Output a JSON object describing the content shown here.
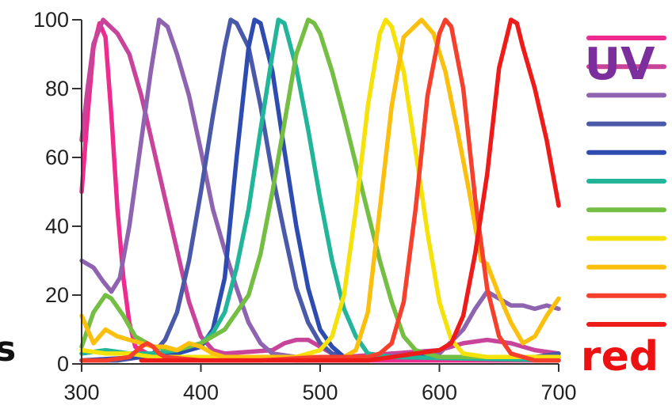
{
  "chart_data": {
    "type": "line",
    "title": "",
    "xlabel": "",
    "ylabel": "",
    "xlim": [
      300,
      700
    ],
    "ylim": [
      0,
      100
    ],
    "x_ticks": [
      "300",
      "400",
      "500",
      "600",
      "700"
    ],
    "y_ticks": [
      "0",
      "20",
      "40",
      "60",
      "80",
      "100"
    ],
    "grid": false,
    "legend_position": "right",
    "legend_labels": [
      {
        "text": "UV",
        "color": "#7b2f9c"
      },
      {
        "text": "red",
        "color": "#ee1111"
      }
    ],
    "cut_off_label": "s",
    "series": [
      {
        "color": "#ee2b8e",
        "points": [
          [
            300,
            50
          ],
          [
            305,
            72
          ],
          [
            310,
            92
          ],
          [
            315,
            99
          ],
          [
            320,
            95
          ],
          [
            325,
            72
          ],
          [
            330,
            45
          ],
          [
            335,
            25
          ],
          [
            340,
            12
          ],
          [
            345,
            5
          ],
          [
            355,
            3
          ],
          [
            380,
            2
          ],
          [
            420,
            2
          ],
          [
            480,
            1
          ],
          [
            550,
            1
          ],
          [
            650,
            1
          ],
          [
            700,
            1
          ]
        ]
      },
      {
        "color": "#c8439a",
        "points": [
          [
            300,
            65
          ],
          [
            305,
            80
          ],
          [
            310,
            93
          ],
          [
            318,
            100
          ],
          [
            330,
            96
          ],
          [
            340,
            90
          ],
          [
            350,
            78
          ],
          [
            360,
            63
          ],
          [
            370,
            48
          ],
          [
            380,
            33
          ],
          [
            390,
            18
          ],
          [
            400,
            8
          ],
          [
            410,
            4
          ],
          [
            420,
            3
          ],
          [
            460,
            4
          ],
          [
            470,
            6
          ],
          [
            480,
            7
          ],
          [
            490,
            7
          ],
          [
            500,
            5
          ],
          [
            510,
            3
          ],
          [
            520,
            2
          ],
          [
            560,
            3
          ],
          [
            600,
            4
          ],
          [
            620,
            6
          ],
          [
            640,
            7
          ],
          [
            660,
            6
          ],
          [
            680,
            4
          ],
          [
            700,
            3
          ]
        ]
      },
      {
        "color": "#8e63b0",
        "points": [
          [
            300,
            30
          ],
          [
            310,
            28
          ],
          [
            318,
            24
          ],
          [
            325,
            21
          ],
          [
            332,
            25
          ],
          [
            340,
            40
          ],
          [
            350,
            65
          ],
          [
            358,
            85
          ],
          [
            365,
            100
          ],
          [
            372,
            98
          ],
          [
            380,
            90
          ],
          [
            390,
            78
          ],
          [
            400,
            62
          ],
          [
            410,
            45
          ],
          [
            420,
            33
          ],
          [
            430,
            22
          ],
          [
            440,
            12
          ],
          [
            450,
            6
          ],
          [
            460,
            3
          ],
          [
            480,
            2
          ],
          [
            540,
            2
          ],
          [
            600,
            3
          ],
          [
            620,
            10
          ],
          [
            630,
            16
          ],
          [
            640,
            21
          ],
          [
            650,
            19
          ],
          [
            660,
            17
          ],
          [
            670,
            17
          ],
          [
            680,
            16
          ],
          [
            690,
            17
          ],
          [
            700,
            16
          ]
        ]
      },
      {
        "color": "#4b5aa8",
        "points": [
          [
            300,
            1
          ],
          [
            330,
            1
          ],
          [
            350,
            2
          ],
          [
            360,
            3
          ],
          [
            370,
            7
          ],
          [
            380,
            15
          ],
          [
            390,
            30
          ],
          [
            400,
            50
          ],
          [
            410,
            72
          ],
          [
            420,
            92
          ],
          [
            425,
            100
          ],
          [
            430,
            99
          ],
          [
            440,
            92
          ],
          [
            450,
            75
          ],
          [
            460,
            55
          ],
          [
            470,
            38
          ],
          [
            480,
            22
          ],
          [
            490,
            12
          ],
          [
            500,
            6
          ],
          [
            510,
            3
          ],
          [
            520,
            2
          ],
          [
            600,
            2
          ],
          [
            680,
            2
          ],
          [
            700,
            3
          ]
        ]
      },
      {
        "color": "#2e4bb0",
        "points": [
          [
            300,
            1
          ],
          [
            350,
            2
          ],
          [
            380,
            3
          ],
          [
            400,
            5
          ],
          [
            410,
            10
          ],
          [
            420,
            25
          ],
          [
            430,
            60
          ],
          [
            440,
            92
          ],
          [
            445,
            100
          ],
          [
            450,
            99
          ],
          [
            460,
            85
          ],
          [
            470,
            62
          ],
          [
            480,
            40
          ],
          [
            490,
            22
          ],
          [
            500,
            10
          ],
          [
            510,
            5
          ],
          [
            520,
            2
          ],
          [
            600,
            2
          ],
          [
            700,
            2
          ]
        ]
      },
      {
        "color": "#22b59a",
        "points": [
          [
            300,
            3
          ],
          [
            320,
            4
          ],
          [
            340,
            3
          ],
          [
            360,
            3
          ],
          [
            380,
            4
          ],
          [
            400,
            6
          ],
          [
            410,
            9
          ],
          [
            420,
            15
          ],
          [
            430,
            28
          ],
          [
            440,
            45
          ],
          [
            450,
            68
          ],
          [
            460,
            90
          ],
          [
            465,
            100
          ],
          [
            470,
            99
          ],
          [
            480,
            86
          ],
          [
            490,
            68
          ],
          [
            500,
            48
          ],
          [
            510,
            30
          ],
          [
            520,
            16
          ],
          [
            530,
            8
          ],
          [
            540,
            3
          ],
          [
            560,
            2
          ],
          [
            700,
            1
          ]
        ]
      },
      {
        "color": "#74be43",
        "points": [
          [
            300,
            5
          ],
          [
            310,
            15
          ],
          [
            320,
            20
          ],
          [
            325,
            19
          ],
          [
            335,
            14
          ],
          [
            345,
            8
          ],
          [
            360,
            5
          ],
          [
            380,
            4
          ],
          [
            400,
            6
          ],
          [
            420,
            10
          ],
          [
            440,
            20
          ],
          [
            450,
            32
          ],
          [
            460,
            50
          ],
          [
            470,
            70
          ],
          [
            480,
            90
          ],
          [
            490,
            100
          ],
          [
            495,
            99
          ],
          [
            500,
            96
          ],
          [
            510,
            85
          ],
          [
            520,
            72
          ],
          [
            530,
            58
          ],
          [
            540,
            44
          ],
          [
            550,
            30
          ],
          [
            560,
            18
          ],
          [
            570,
            8
          ],
          [
            580,
            4
          ],
          [
            600,
            2
          ],
          [
            650,
            2
          ],
          [
            700,
            2
          ]
        ]
      },
      {
        "color": "#f4e20a",
        "points": [
          [
            300,
            4
          ],
          [
            320,
            3
          ],
          [
            340,
            3
          ],
          [
            360,
            2
          ],
          [
            400,
            2
          ],
          [
            450,
            2
          ],
          [
            480,
            2
          ],
          [
            490,
            3
          ],
          [
            500,
            4
          ],
          [
            510,
            8
          ],
          [
            520,
            20
          ],
          [
            530,
            45
          ],
          [
            540,
            75
          ],
          [
            550,
            96
          ],
          [
            555,
            100
          ],
          [
            560,
            98
          ],
          [
            570,
            85
          ],
          [
            580,
            62
          ],
          [
            590,
            38
          ],
          [
            600,
            18
          ],
          [
            610,
            7
          ],
          [
            620,
            3
          ],
          [
            640,
            2
          ],
          [
            700,
            2
          ]
        ]
      },
      {
        "color": "#fbbf0e",
        "points": [
          [
            300,
            14
          ],
          [
            305,
            10
          ],
          [
            310,
            6
          ],
          [
            315,
            8
          ],
          [
            320,
            10
          ],
          [
            330,
            8
          ],
          [
            340,
            7
          ],
          [
            350,
            6
          ],
          [
            360,
            5
          ],
          [
            370,
            5
          ],
          [
            380,
            4
          ],
          [
            390,
            6
          ],
          [
            400,
            5
          ],
          [
            410,
            3
          ],
          [
            420,
            2
          ],
          [
            480,
            2
          ],
          [
            520,
            2
          ],
          [
            530,
            4
          ],
          [
            540,
            15
          ],
          [
            550,
            45
          ],
          [
            560,
            75
          ],
          [
            570,
            95
          ],
          [
            585,
            100
          ],
          [
            595,
            96
          ],
          [
            605,
            85
          ],
          [
            615,
            68
          ],
          [
            625,
            50
          ],
          [
            635,
            30
          ],
          [
            640,
            29
          ],
          [
            650,
            20
          ],
          [
            660,
            12
          ],
          [
            670,
            6
          ],
          [
            680,
            8
          ],
          [
            690,
            14
          ],
          [
            700,
            19
          ]
        ]
      },
      {
        "color": "#f5402e",
        "points": [
          [
            300,
            1
          ],
          [
            320,
            1
          ],
          [
            340,
            2
          ],
          [
            350,
            5
          ],
          [
            355,
            6
          ],
          [
            360,
            5
          ],
          [
            365,
            3
          ],
          [
            370,
            2
          ],
          [
            400,
            1
          ],
          [
            450,
            1
          ],
          [
            500,
            2
          ],
          [
            540,
            2
          ],
          [
            550,
            3
          ],
          [
            560,
            6
          ],
          [
            570,
            18
          ],
          [
            580,
            45
          ],
          [
            590,
            78
          ],
          [
            600,
            96
          ],
          [
            605,
            100
          ],
          [
            610,
            98
          ],
          [
            620,
            80
          ],
          [
            630,
            48
          ],
          [
            640,
            22
          ],
          [
            650,
            8
          ],
          [
            660,
            3
          ],
          [
            680,
            1
          ],
          [
            700,
            1
          ]
        ]
      },
      {
        "color": "#ee1b1b",
        "points": [
          [
            350,
            1
          ],
          [
            400,
            1
          ],
          [
            450,
            1
          ],
          [
            500,
            1
          ],
          [
            540,
            1
          ],
          [
            560,
            2
          ],
          [
            580,
            3
          ],
          [
            600,
            4
          ],
          [
            610,
            6
          ],
          [
            620,
            14
          ],
          [
            630,
            32
          ],
          [
            640,
            55
          ],
          [
            650,
            86
          ],
          [
            660,
            100
          ],
          [
            665,
            99
          ],
          [
            670,
            92
          ],
          [
            680,
            80
          ],
          [
            690,
            65
          ],
          [
            700,
            46
          ]
        ]
      }
    ]
  }
}
